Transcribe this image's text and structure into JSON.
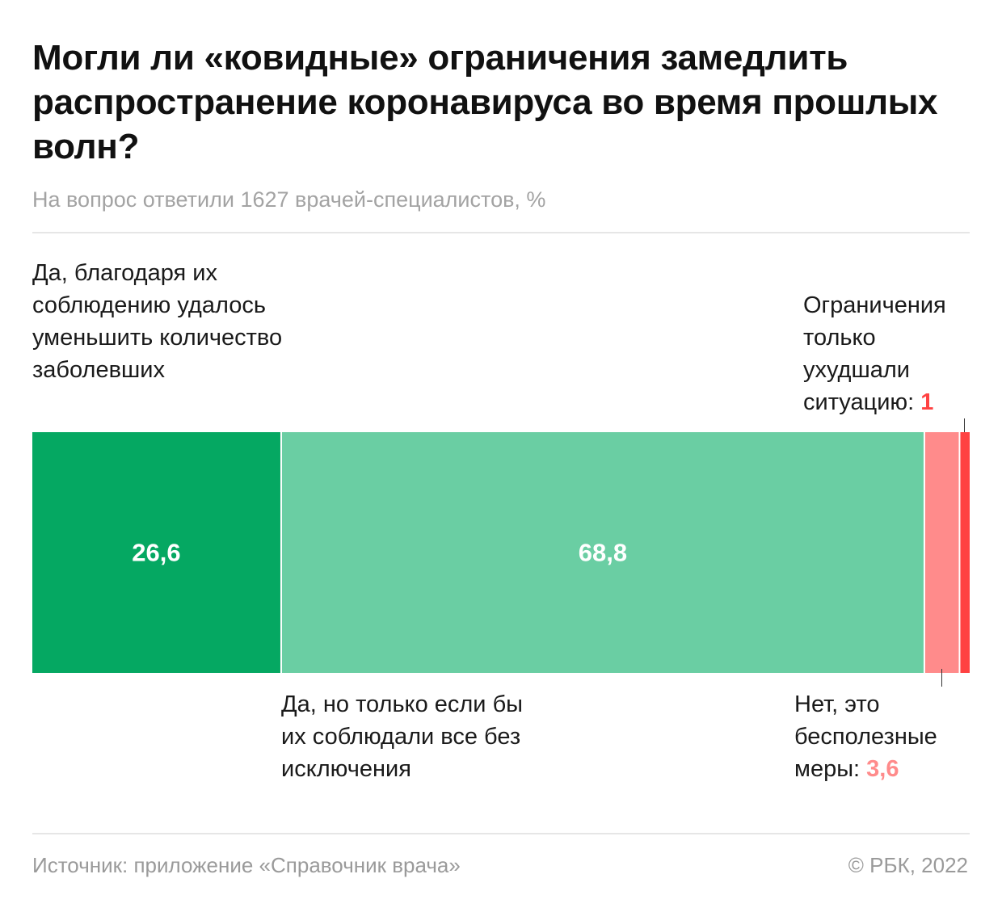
{
  "header": {
    "title": "Могли ли «ковидные» ограничения замедлить распространение коронавируса во время прошлых волн?",
    "subtitle": "На вопрос ответили 1627 врачей-специалистов, %"
  },
  "labels": {
    "yes_reduced": "Да, благодаря их соблюдению удалось уменьшить количество заболевших",
    "yes_if_all": "Да, но только если бы их соблюдали все без исключения",
    "worsened": "Ограничения только ухудшали ситуацию:",
    "worsened_value": "1",
    "useless": "Нет, это бесполезные меры:",
    "useless_value": "3,6"
  },
  "colors": {
    "yes_reduced": "#05a862",
    "yes_if_all": "#6acea3",
    "useless": "#ff8b8b",
    "worsened": "#ff4242"
  },
  "chart_data": {
    "type": "bar",
    "orientation": "horizontal-stacked",
    "categories": [
      "Да, благодаря их соблюдению удалось уменьшить количество заболевших",
      "Да, но только если бы их соблюдали все без исключения",
      "Нет, это бесполезные меры",
      "Ограничения только ухудшали ситуацию"
    ],
    "values": [
      26.6,
      68.8,
      3.6,
      1
    ],
    "value_labels": [
      "26,6",
      "68,8",
      "",
      ""
    ],
    "title": "Могли ли «ковидные» ограничения замедлить распространение коронавируса во время прошлых волн?",
    "subtitle": "На вопрос ответили 1627 врачей-специалистов, %",
    "xlabel": "",
    "ylabel": "",
    "xlim": [
      0,
      100
    ]
  },
  "footer": {
    "source": "Источник: приложение «Справочник врача»",
    "copyright": "© РБК, 2022"
  }
}
